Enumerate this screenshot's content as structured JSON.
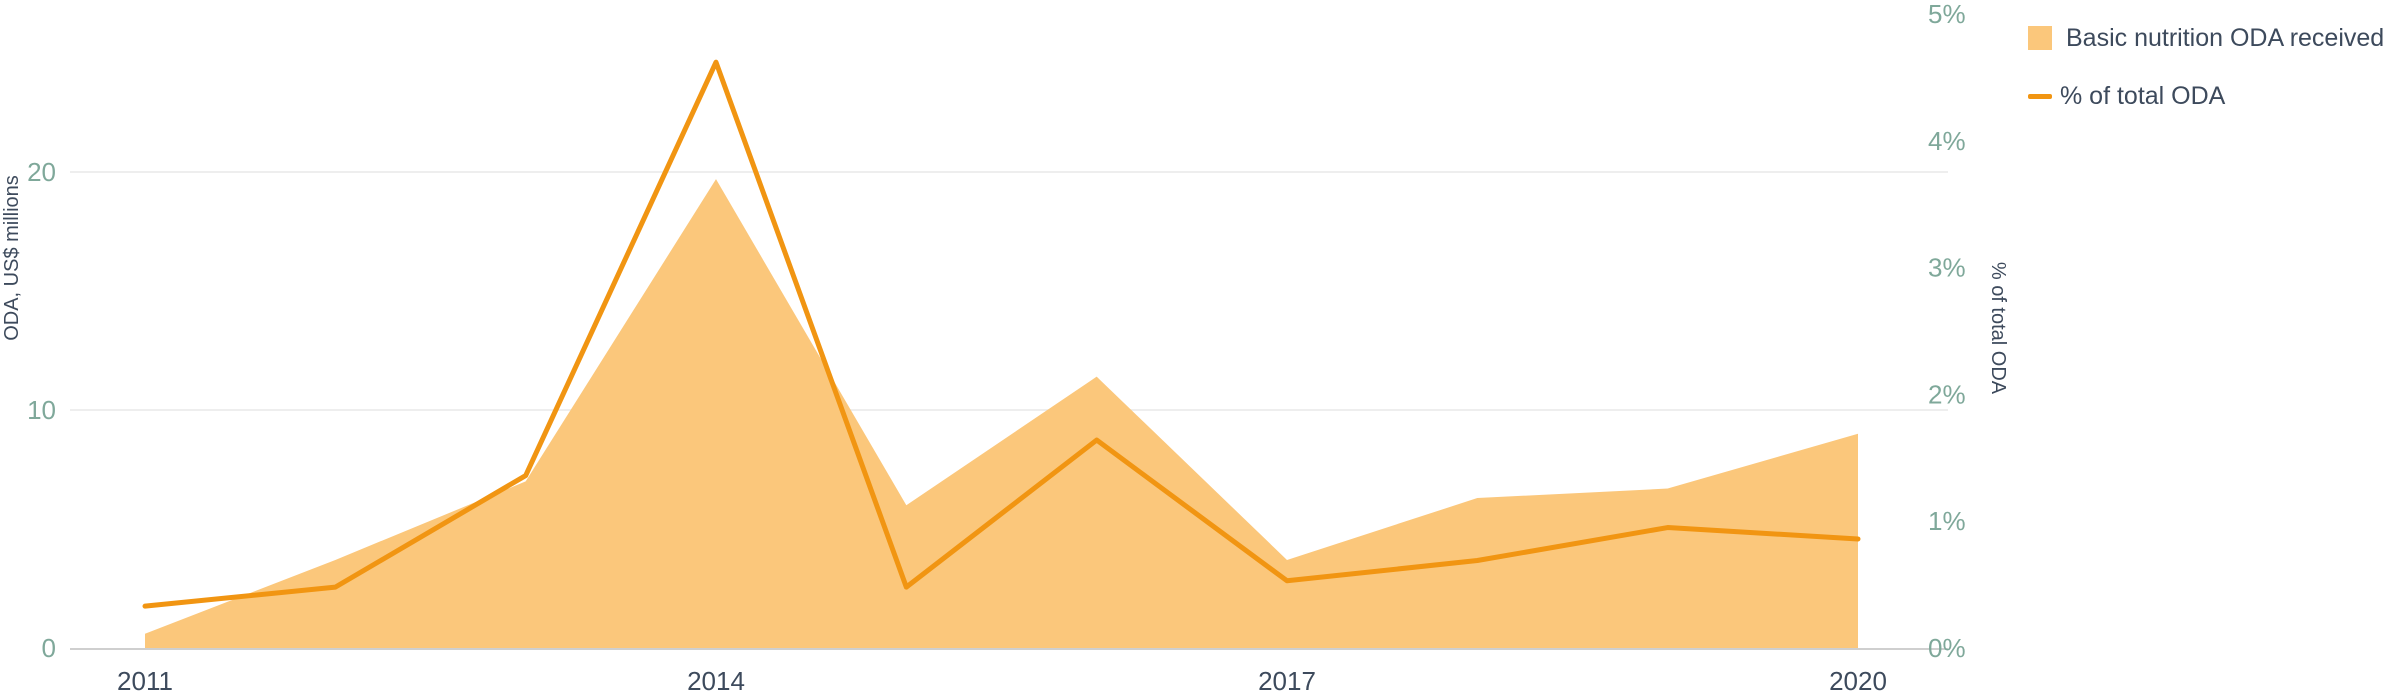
{
  "chart_data": {
    "type": "area",
    "x": [
      2011,
      2012,
      2013,
      2014,
      2015,
      2016,
      2017,
      2018,
      2019,
      2020
    ],
    "x_tick_labels": [
      "2011",
      "2014",
      "2017",
      "2020"
    ],
    "series": [
      {
        "name": "Basic nutrition ODA received",
        "type": "area",
        "axis": "left",
        "color": "#fbc77b",
        "values": [
          0.6,
          3.7,
          7.0,
          19.7,
          6.0,
          11.4,
          3.7,
          6.3,
          6.7,
          9.0
        ]
      },
      {
        "name": "% of total ODA",
        "type": "line",
        "axis": "right",
        "color": "#f19512",
        "values": [
          0.33,
          0.48,
          1.36,
          4.62,
          0.48,
          1.64,
          0.53,
          0.69,
          0.95,
          0.86
        ]
      }
    ],
    "ylabel": "ODA, US$ millions",
    "ylim": [
      0,
      20
    ],
    "y_ticks": [
      "0",
      "10",
      "20"
    ],
    "y2label": "% of total ODA",
    "y2lim": [
      0,
      5
    ],
    "y2_ticks": [
      "0%",
      "1%",
      "2%",
      "3%",
      "4%",
      "5%"
    ],
    "grid": true,
    "legend_position": "top-right"
  },
  "legend": {
    "area_label": "Basic nutrition ODA received",
    "line_label": "% of total ODA"
  },
  "colors": {
    "area": "#fbc77b",
    "line": "#f19512",
    "grid": "#e8e8e8",
    "axis": "#cfcfcf"
  }
}
